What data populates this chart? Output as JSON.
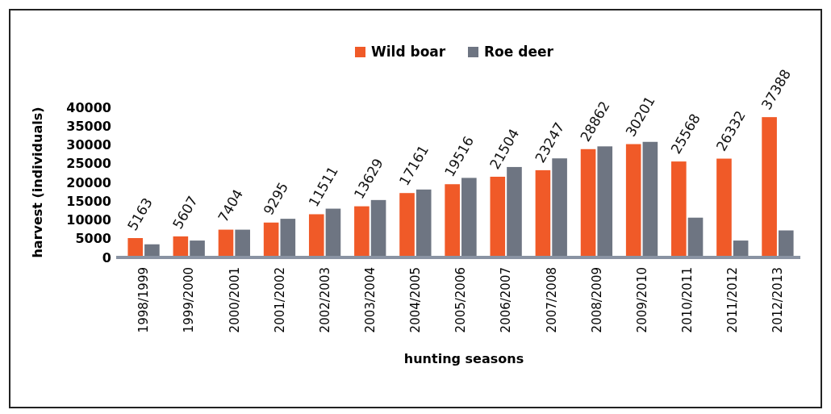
{
  "chart_data": {
    "type": "bar",
    "xlabel": "hunting seasons",
    "ylabel": "harvest (individuals)",
    "categories": [
      "1998/1999",
      "1999/2000",
      "2000/2001",
      "2001/2002",
      "2002/2003",
      "2003/2004",
      "2004/2005",
      "2005/2006",
      "2006/2007",
      "2007/2008",
      "2008/2009",
      "2009/2010",
      "2010/2011",
      "2011/2012",
      "2012/2013"
    ],
    "series": [
      {
        "name": "Wild boar",
        "color": "#f05a28",
        "values": [
          5163,
          5607,
          7404,
          9295,
          11511,
          13629,
          17161,
          19516,
          21504,
          23247,
          28862,
          30201,
          25568,
          26332,
          37388
        ],
        "value_labels": [
          "5163",
          "5607",
          "7404",
          "9295",
          "11511",
          "13629",
          "17161",
          "19516",
          "21504",
          "23247",
          "28862",
          "30201",
          "25568",
          "26332",
          "37388"
        ]
      },
      {
        "name": "Roe deer",
        "color": "#6e7582",
        "values": [
          3500,
          4500,
          7400,
          10300,
          13000,
          15300,
          18100,
          21200,
          24100,
          26400,
          29600,
          30800,
          10600,
          4500,
          7200
        ]
      }
    ],
    "ylim": [
      0,
      40000
    ],
    "yticks": [
      0,
      5000,
      10000,
      15000,
      20000,
      25000,
      30000,
      35000,
      40000
    ],
    "grid": false,
    "legend": "top"
  }
}
